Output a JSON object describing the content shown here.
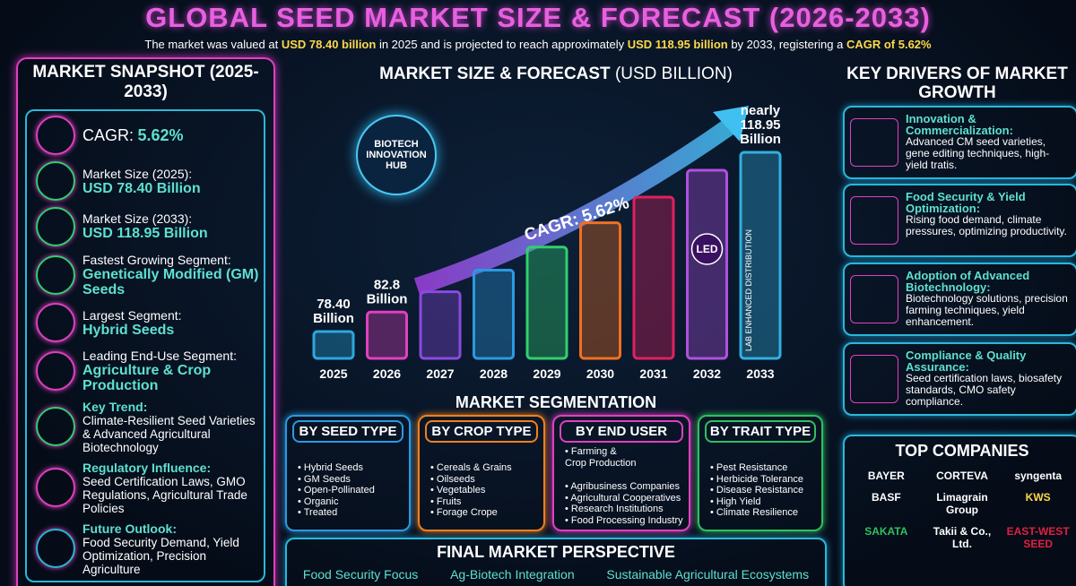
{
  "header": {
    "title": "GLOBAL SEED MARKET SIZE & FORECAST (2026-2033)",
    "subtitle": [
      "The market was valued at ",
      "USD 78.40 billion",
      " in 2025 and is projected to reach approximately ",
      "USD 118.95 billion",
      " by 2033, registering a ",
      "CAGR of 5.62%"
    ]
  },
  "snapshot": {
    "title": "MARKET SNAPSHOT (2025-2033)",
    "items": [
      {
        "label": "CAGR:",
        "value": "5.62%"
      },
      {
        "label": "Market Size (2025):",
        "value": "USD 78.40 Billion"
      },
      {
        "label": "Market Size (2033):",
        "value": "USD 118.95 Billion"
      },
      {
        "label": "Fastest Growing Segment:",
        "value": "Genetically Modified (GM) Seeds"
      },
      {
        "label": "Largest Segment:",
        "value": "Hybrid Seeds"
      },
      {
        "label": "Leading End-Use Segment:",
        "value": "Agriculture & Crop Production"
      },
      {
        "label": "Key Trend:",
        "value": "Climate-Resilient Seed Varieties & Advanced Agricultural Biotechnology"
      },
      {
        "label": "Regulatory Influence:",
        "value": "Seed Certification Laws, GMO Regulations, Agricultural Trade Policies"
      },
      {
        "label": "Future Outlook:",
        "value": "Food Security Demand, Yield Optimization, Precision Agriculture"
      }
    ]
  },
  "chart_data": {
    "type": "bar",
    "title": "MARKET SIZE & FORECAST",
    "title_unit": "(USD BILLION)",
    "categories": [
      "2025",
      "2026",
      "2027",
      "2028",
      "2029",
      "2030",
      "2031",
      "2032",
      "2033"
    ],
    "values": [
      78.4,
      82.8,
      87.4,
      92.3,
      97.5,
      103.0,
      108.8,
      114.9,
      118.95
    ],
    "value_labels": [
      "78.40",
      "82.8",
      null,
      null,
      null,
      null,
      null,
      null,
      "118.95"
    ],
    "unit": "Billion",
    "prefix": "nearly",
    "annotation": "CAGR: 5.62%",
    "colors": [
      "#2aa8e0",
      "#e040c0",
      "#8a4ae0",
      "#2a9ae0",
      "#30d070",
      "#f07020",
      "#e02060",
      "#b050e0",
      "#30b0e0"
    ],
    "hub": "BIOTECH INNOVATION HUB",
    "led": "LED",
    "bar_text": "LAB ENHANCED DISTRIBUTION"
  },
  "drivers": {
    "title": "KEY DRIVERS OF MARKET GROWTH",
    "items": [
      {
        "title": "Innovation & Commercialization:",
        "text": "Advanced CM seed varieties, gene editing techniques, high-yield tratis."
      },
      {
        "title": "Food Security & Yield Optimization:",
        "text": "Rising food demand, climate pressures, optimizing productivity."
      },
      {
        "title": "Adoption of Advanced Biotechnology:",
        "text": "Biotechnology solutions, precision farming techniques, yield enhancement."
      },
      {
        "title": "Compliance & Quality Assurance:",
        "text": "Seed certification laws, biosafety standards, CMO safety compliance."
      }
    ]
  },
  "segmentation": {
    "title": "MARKET SEGMENTATION",
    "groups": [
      {
        "name": "BY SEED TYPE",
        "items": [
          "Hybrid Seeds",
          "GM Seeds",
          "Open-Pollinated",
          "Organic",
          "Treated"
        ]
      },
      {
        "name": "BY CROP TYPE",
        "items": [
          "Cereals & Grains",
          "Oilseeds",
          "Vegetables",
          "Fruits",
          "Forage Crope"
        ]
      },
      {
        "name": "BY END USER",
        "items": [
          "Farming & Crop Production",
          "Agribusiness Companies",
          "Agricultural Cooperatives",
          "Research Institutions",
          "Food Processing Industry"
        ]
      },
      {
        "name": "BY TRAIT TYPE",
        "items": [
          "Pest Resistance",
          "Herbicide Tolerance",
          "Disease Resistance",
          "High Yield",
          "Climate Resilience"
        ]
      }
    ]
  },
  "perspective": {
    "title": "FINAL MARKET PERSPECTIVE",
    "items": [
      "Food Security Focus",
      "Ag-Biotech Integration",
      "Sustainable Agricultural Ecosystems"
    ]
  },
  "companies": {
    "title": "TOP COMPANIES",
    "items": [
      "BAYER",
      "CORTEVA",
      "syngenta",
      "BASF",
      "Limagrain Group",
      "KWS",
      "SAKATA",
      "Takii & Co., Ltd.",
      "EAST-WEST SEED"
    ]
  }
}
